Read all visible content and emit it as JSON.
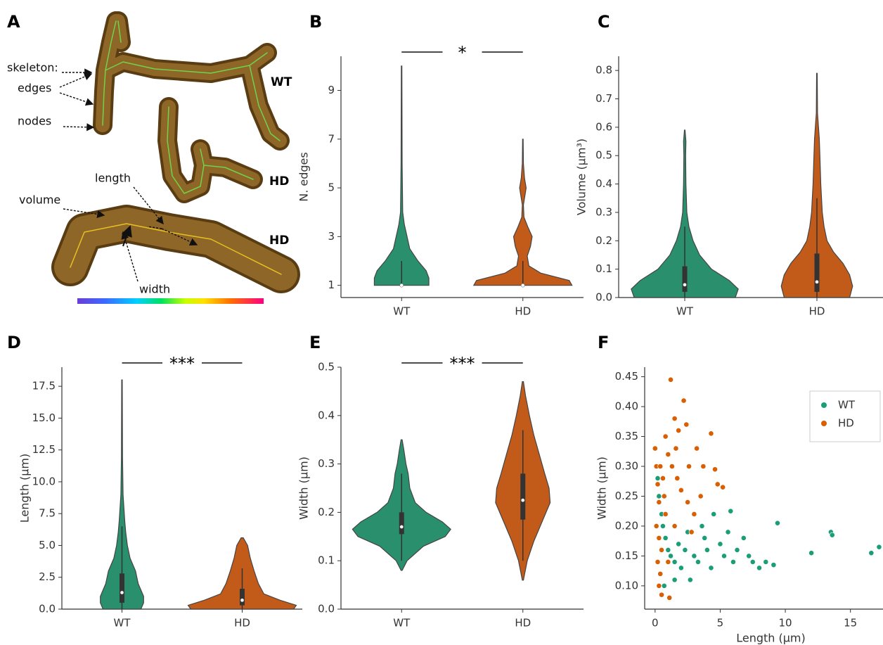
{
  "panel_a": {
    "panel": "A",
    "skeleton": "skeleton:",
    "edges": "edges",
    "nodes": "nodes",
    "length": "length",
    "volume": "volume",
    "width": "width",
    "label_1": "WT",
    "label_2": "HD",
    "label_3": "HD"
  },
  "chart_data": [
    {
      "type": "violin",
      "panel": "B",
      "y_label": "N. edges",
      "annotation": "*",
      "categories": [
        "WT",
        "HD"
      ],
      "ylim": [
        0.5,
        10.4
      ],
      "yticks": [
        1,
        3,
        5,
        7,
        9
      ],
      "series": [
        {
          "name": "WT",
          "color": "#2a8f6d",
          "density_y": [
            1,
            1.3,
            1.6,
            2,
            2.5,
            3,
            3.5,
            4,
            6,
            10
          ],
          "density_w": [
            0.5,
            0.5,
            0.45,
            0.3,
            0.15,
            0.1,
            0.05,
            0.02,
            0.01,
            0.005
          ],
          "whisker": [
            1,
            2
          ],
          "box": [
            1,
            1
          ],
          "median": 1
        },
        {
          "name": "HD",
          "color": "#c25b1a",
          "density_y": [
            1,
            1.2,
            1.5,
            1.8,
            2.2,
            2.6,
            3,
            3.4,
            3.8,
            4.3,
            5,
            5.4,
            6,
            7
          ],
          "density_w": [
            0.9,
            0.85,
            0.33,
            0.11,
            0.08,
            0.14,
            0.17,
            0.09,
            0.02,
            0.01,
            0.06,
            0.03,
            0.01,
            0.005
          ],
          "whisker": [
            1,
            2
          ],
          "box": [
            1,
            1
          ],
          "median": 1
        }
      ]
    },
    {
      "type": "violin",
      "panel": "C",
      "y_label": "Volume (μm³)",
      "categories": [
        "WT",
        "HD"
      ],
      "ylim": [
        0,
        0.85
      ],
      "yticks": [
        {
          "value": 0,
          "label": "0.0"
        },
        0.1,
        0.2,
        0.3,
        0.4,
        0.5,
        0.6,
        0.7,
        0.8
      ],
      "series": [
        {
          "name": "WT",
          "color": "#2a8f6d",
          "density_y": [
            0,
            0.03,
            0.06,
            0.1,
            0.15,
            0.2,
            0.25,
            0.3,
            0.4,
            0.5,
            0.55,
            0.59
          ],
          "density_w": [
            0.85,
            0.9,
            0.75,
            0.45,
            0.25,
            0.14,
            0.07,
            0.035,
            0.02,
            0.015,
            0.02,
            0.005
          ],
          "whisker": [
            0,
            0.25
          ],
          "box": [
            0.02,
            0.11
          ],
          "median": 0.045
        },
        {
          "name": "HD",
          "color": "#c25b1a",
          "density_y": [
            0,
            0.04,
            0.08,
            0.12,
            0.16,
            0.2,
            0.25,
            0.3,
            0.4,
            0.5,
            0.56,
            0.65,
            0.79
          ],
          "density_w": [
            0.55,
            0.6,
            0.55,
            0.44,
            0.28,
            0.17,
            0.12,
            0.09,
            0.065,
            0.05,
            0.04,
            0.01,
            0.005
          ],
          "whisker": [
            0,
            0.35
          ],
          "box": [
            0.02,
            0.155
          ],
          "median": 0.055
        }
      ]
    },
    {
      "type": "violin",
      "panel": "D",
      "y_label": "Length (μm)",
      "annotation": "***",
      "categories": [
        "WT",
        "HD"
      ],
      "ylim": [
        0,
        19
      ],
      "yticks": [
        {
          "value": 0,
          "label": "0.0"
        },
        2.5,
        {
          "value": 5,
          "label": "5.0"
        },
        7.5,
        {
          "value": 10,
          "label": "10.0"
        },
        12.5,
        {
          "value": 15,
          "label": "15.0"
        },
        17.5
      ],
      "series": [
        {
          "name": "WT",
          "color": "#2a8f6d",
          "density_y": [
            0,
            0.5,
            1,
            2,
            3,
            4,
            5,
            6,
            7,
            9,
            12,
            18
          ],
          "density_w": [
            0.35,
            0.4,
            0.4,
            0.3,
            0.25,
            0.15,
            0.1,
            0.07,
            0.05,
            0.02,
            0.01,
            0.005
          ],
          "whisker": [
            0,
            6.5
          ],
          "box": [
            0.5,
            2.8
          ],
          "median": 1.3
        },
        {
          "name": "HD",
          "color": "#c25b1a",
          "density_y": [
            0,
            0.3,
            0.7,
            1.2,
            2,
            3,
            4,
            5,
            5.6
          ],
          "density_w": [
            0.95,
            1.0,
            0.7,
            0.4,
            0.3,
            0.22,
            0.15,
            0.1,
            0.02
          ],
          "whisker": [
            0,
            3.2
          ],
          "box": [
            0.3,
            1.6
          ],
          "median": 0.7
        }
      ]
    },
    {
      "type": "violin",
      "panel": "E",
      "y_label": "Width (μm)",
      "annotation": "***",
      "categories": [
        "WT",
        "HD"
      ],
      "ylim": [
        0,
        0.5
      ],
      "yticks": [
        {
          "value": 0,
          "label": "0.0"
        },
        0.1,
        0.2,
        0.3,
        0.4,
        0.5
      ],
      "series": [
        {
          "name": "WT",
          "color": "#2a8f6d",
          "density_y": [
            0.08,
            0.1,
            0.13,
            0.15,
            0.165,
            0.18,
            0.2,
            0.22,
            0.25,
            0.28,
            0.3,
            0.33,
            0.35
          ],
          "density_w": [
            0.01,
            0.1,
            0.4,
            0.8,
            0.9,
            0.75,
            0.45,
            0.25,
            0.15,
            0.12,
            0.08,
            0.04,
            0.01
          ],
          "whisker": [
            0.1,
            0.28
          ],
          "box": [
            0.155,
            0.2
          ],
          "median": 0.17
        },
        {
          "name": "HD",
          "color": "#c25b1a",
          "density_y": [
            0.06,
            0.1,
            0.14,
            0.18,
            0.22,
            0.25,
            0.28,
            0.32,
            0.36,
            0.4,
            0.44,
            0.47
          ],
          "density_w": [
            0.01,
            0.08,
            0.2,
            0.35,
            0.5,
            0.48,
            0.4,
            0.3,
            0.2,
            0.12,
            0.05,
            0.01
          ],
          "whisker": [
            0.1,
            0.37
          ],
          "box": [
            0.185,
            0.28
          ],
          "median": 0.225
        }
      ]
    },
    {
      "type": "scatter",
      "panel": "F",
      "x_label": "Length (μm)",
      "y_label": "Width (μm)",
      "legend": "upper right",
      "xlim": [
        -0.8,
        17.5
      ],
      "xticks": [
        0,
        5,
        10,
        15
      ],
      "ylim": [
        0.061,
        0.466
      ],
      "yticks": [
        {
          "value": 0.1,
          "label": "0.10"
        },
        0.15,
        {
          "value": 0.2,
          "label": "0.20"
        },
        0.25,
        {
          "value": 0.3,
          "label": "0.30"
        },
        0.35,
        {
          "value": 0.4,
          "label": "0.40"
        },
        0.45
      ],
      "series": [
        {
          "name": "WT",
          "color": "#1b9e77",
          "x": [
            0.1,
            0.2,
            0.3,
            0.5,
            0.6,
            0.8,
            1,
            1.2,
            1.5,
            1.8,
            2,
            2.3,
            2.5,
            3,
            3.3,
            3.6,
            4,
            4.3,
            4.5,
            5,
            5.3,
            5.6,
            6,
            6.3,
            6.8,
            7.2,
            7.5,
            8,
            8.5,
            9.1,
            9.4,
            12,
            13.5,
            13.6,
            16.6,
            17.2,
            0.4,
            0.7,
            1.5,
            2.7,
            3.8,
            5.8
          ],
          "values": [
            0.3,
            0.28,
            0.25,
            0.22,
            0.2,
            0.18,
            0.16,
            0.15,
            0.14,
            0.17,
            0.13,
            0.16,
            0.19,
            0.15,
            0.14,
            0.2,
            0.16,
            0.13,
            0.22,
            0.17,
            0.15,
            0.19,
            0.14,
            0.16,
            0.18,
            0.15,
            0.14,
            0.13,
            0.14,
            0.135,
            0.205,
            0.155,
            0.19,
            0.185,
            0.155,
            0.165,
            0.12,
            0.1,
            0.11,
            0.11,
            0.18,
            0.225
          ]
        },
        {
          "name": "HD",
          "color": "#d95f02",
          "x": [
            0,
            0.1,
            0.2,
            0.3,
            0.1,
            0.3,
            0.5,
            0.2,
            0.4,
            0.3,
            0.5,
            1.1,
            1.2,
            1.5,
            1.8,
            2.2,
            2.4,
            0.8,
            1,
            1.3,
            1.7,
            2,
            2.5,
            3,
            3.5,
            3.2,
            3.7,
            4.3,
            4.6,
            4.8,
            5.2,
            0.6,
            0.8,
            1.5,
            2.8,
            1,
            0.7,
            0.4,
            1.6,
            2.6
          ],
          "values": [
            0.33,
            0.3,
            0.27,
            0.24,
            0.2,
            0.18,
            0.16,
            0.14,
            0.12,
            0.1,
            0.085,
            0.08,
            0.445,
            0.38,
            0.36,
            0.41,
            0.37,
            0.35,
            0.32,
            0.3,
            0.28,
            0.26,
            0.24,
            0.22,
            0.25,
            0.33,
            0.3,
            0.355,
            0.295,
            0.27,
            0.265,
            0.28,
            0.22,
            0.2,
            0.19,
            0.14,
            0.25,
            0.3,
            0.33,
            0.3
          ]
        }
      ]
    }
  ]
}
